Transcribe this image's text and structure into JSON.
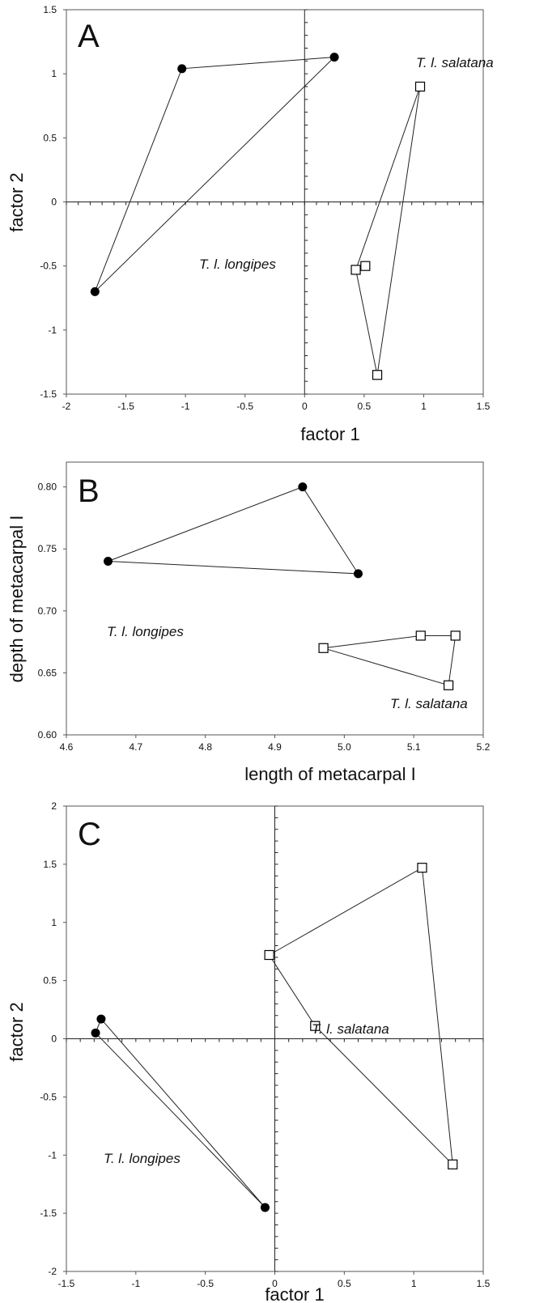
{
  "chart_data": [
    {
      "panel": "A",
      "type": "scatter",
      "xlabel": "factor 1",
      "ylabel": "factor 2",
      "xlim": [
        -2,
        1.5
      ],
      "ylim": [
        -1.5,
        1.5
      ],
      "xticks": [
        -2,
        -1.5,
        -1,
        -0.5,
        0,
        0.5,
        1,
        1.5
      ],
      "yticks": [
        -1.5,
        -1,
        -0.5,
        0,
        0.5,
        1,
        1.5
      ],
      "xtick_labels": [
        "-2",
        "-1.5",
        "-1",
        "-0.5",
        "0",
        "0.5",
        "1",
        "1.5"
      ],
      "ytick_labels": [
        "-1.5",
        "-1",
        "-0.5",
        "0",
        "0.5",
        "1",
        "1.5"
      ],
      "zero_axes": true,
      "grid": false,
      "series": [
        {
          "name": "T. l. longipes",
          "marker": "filled-circle",
          "points": [
            [
              -1.76,
              -0.7
            ],
            [
              -1.03,
              1.04
            ],
            [
              0.25,
              1.13
            ]
          ],
          "hull": [
            [
              -1.76,
              -0.7
            ],
            [
              -1.03,
              1.04
            ],
            [
              0.25,
              1.13
            ]
          ]
        },
        {
          "name": "T. l. salatana",
          "marker": "open-square",
          "points": [
            [
              0.97,
              0.9
            ],
            [
              0.43,
              -0.53
            ],
            [
              0.51,
              -0.5
            ],
            [
              0.61,
              -1.35
            ]
          ],
          "hull": [
            [
              0.97,
              0.9
            ],
            [
              0.43,
              -0.53
            ],
            [
              0.61,
              -1.35
            ]
          ]
        }
      ]
    },
    {
      "panel": "B",
      "type": "scatter",
      "xlabel": "length of metacarpal I",
      "ylabel": "depth of metacarpal I",
      "xlim": [
        4.6,
        5.2
      ],
      "ylim": [
        0.6,
        0.82
      ],
      "xticks": [
        4.6,
        4.7,
        4.8,
        4.9,
        5.0,
        5.1,
        5.2
      ],
      "yticks": [
        0.6,
        0.65,
        0.7,
        0.75,
        0.8
      ],
      "xtick_labels": [
        "4.6",
        "4.7",
        "4.8",
        "4.9",
        "5.0",
        "5.1",
        "5.2"
      ],
      "ytick_labels": [
        "0.60",
        "0.65",
        "0.70",
        "0.75",
        "0.80"
      ],
      "zero_axes": false,
      "grid": false,
      "series": [
        {
          "name": "T. l. longipes",
          "marker": "filled-circle",
          "points": [
            [
              4.66,
              0.74
            ],
            [
              4.94,
              0.8
            ],
            [
              5.02,
              0.73
            ]
          ],
          "hull": [
            [
              4.66,
              0.74
            ],
            [
              4.94,
              0.8
            ],
            [
              5.02,
              0.73
            ]
          ]
        },
        {
          "name": "T. l. salatana",
          "marker": "open-square",
          "points": [
            [
              4.97,
              0.67
            ],
            [
              5.11,
              0.68
            ],
            [
              5.16,
              0.68
            ],
            [
              5.15,
              0.64
            ]
          ],
          "hull": [
            [
              4.97,
              0.67
            ],
            [
              5.11,
              0.68
            ],
            [
              5.16,
              0.68
            ],
            [
              5.15,
              0.64
            ]
          ]
        }
      ]
    },
    {
      "panel": "C",
      "type": "scatter",
      "xlabel": "factor 1",
      "ylabel": "factor 2",
      "xlim": [
        -1.5,
        1.5
      ],
      "ylim": [
        -2,
        2
      ],
      "xticks": [
        -1.5,
        -1,
        -0.5,
        0,
        0.5,
        1,
        1.5
      ],
      "yticks": [
        -2,
        -1.5,
        -1,
        -0.5,
        0,
        0.5,
        1,
        1.5,
        2
      ],
      "xtick_labels": [
        "-1.5",
        "-1",
        "-0.5",
        "0",
        "0.5",
        "1",
        "1.5"
      ],
      "ytick_labels": [
        "-2",
        "-1.5",
        "-1",
        "-0.5",
        "0",
        "0.5",
        "1",
        "1.5",
        "2"
      ],
      "zero_axes": true,
      "grid": false,
      "series": [
        {
          "name": "T. l. longipes",
          "marker": "filled-circle",
          "points": [
            [
              -1.29,
              0.05
            ],
            [
              -1.25,
              0.17
            ],
            [
              -0.07,
              -1.45
            ]
          ],
          "hull": [
            [
              -1.29,
              0.05
            ],
            [
              -1.25,
              0.17
            ],
            [
              -0.07,
              -1.45
            ]
          ]
        },
        {
          "name": "T. l. salatana",
          "marker": "open-square",
          "points": [
            [
              -0.04,
              0.72
            ],
            [
              1.06,
              1.47
            ],
            [
              0.29,
              0.11
            ],
            [
              1.28,
              -1.08
            ]
          ],
          "hull": [
            [
              -0.04,
              0.72
            ],
            [
              1.06,
              1.47
            ],
            [
              1.28,
              -1.08
            ],
            [
              0.29,
              0.11
            ]
          ]
        }
      ]
    }
  ]
}
